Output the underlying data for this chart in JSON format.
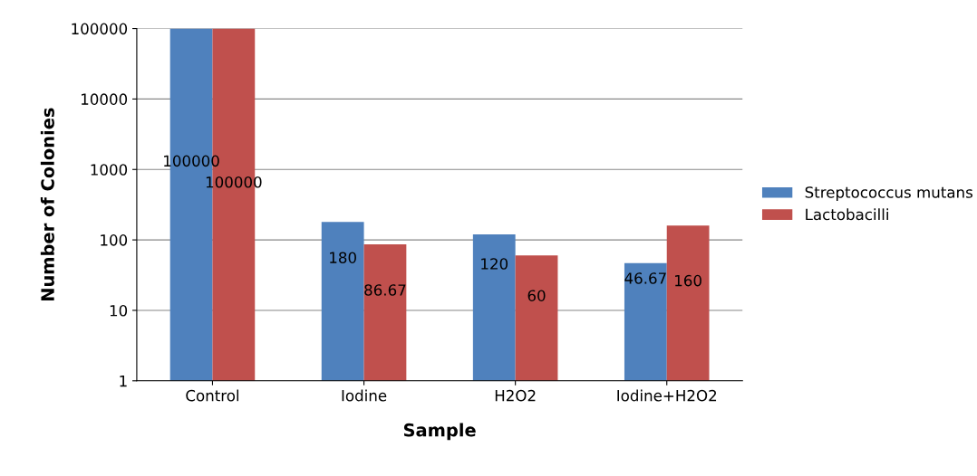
{
  "chart_data": {
    "type": "bar",
    "xlabel": "Sample",
    "ylabel": "Number of Colonies",
    "categories": [
      "Control",
      "Iodine",
      "H2O2",
      "Iodine+H2O2"
    ],
    "series": [
      {
        "name": "Streptococcus mutans",
        "color": "#4f81bd",
        "values": [
          100000,
          180,
          120,
          46.67
        ]
      },
      {
        "name": "Lactobacilli",
        "color": "#c0504d",
        "values": [
          100000,
          86.67,
          60,
          160
        ]
      }
    ],
    "log": true,
    "ylim": [
      1,
      100000
    ],
    "yticks": [
      1,
      10,
      100,
      1000,
      10000,
      100000
    ],
    "grid": "y",
    "legend": "right",
    "data_labels": true
  }
}
